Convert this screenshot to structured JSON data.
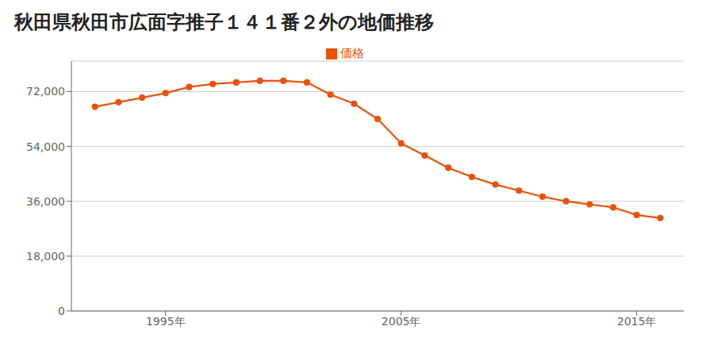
{
  "chart_data": {
    "type": "line",
    "title": "秋田県秋田市広面字推子１４１番２外の地価推移",
    "x": [
      1992,
      1993,
      1994,
      1995,
      1996,
      1997,
      1998,
      1999,
      2000,
      2001,
      2002,
      2003,
      2004,
      2005,
      2006,
      2007,
      2008,
      2009,
      2010,
      2011,
      2012,
      2013,
      2014,
      2015,
      2016
    ],
    "series": [
      {
        "name": "価格",
        "color": "#E8520A",
        "marker": "circle",
        "values": [
          67000,
          68500,
          70000,
          71500,
          73500,
          74500,
          75000,
          75500,
          75500,
          75000,
          71000,
          68000,
          63000,
          55000,
          51000,
          47000,
          44000,
          41500,
          39500,
          37500,
          36000,
          35000,
          34000,
          31500,
          30500
        ]
      }
    ],
    "xlim": [
      1991,
      2017
    ],
    "xticks": [
      {
        "value": 1995,
        "label": "1995年"
      },
      {
        "value": 2005,
        "label": "2005年"
      },
      {
        "value": 2015,
        "label": "2015年"
      }
    ],
    "ylim": [
      0,
      82000
    ],
    "yticks": [
      0,
      {
        "value": 18000,
        "label": "18,000"
      },
      {
        "value": 36000,
        "label": "36,000"
      },
      {
        "value": 54000,
        "label": "54,000"
      },
      {
        "value": 72000,
        "label": "72,000"
      }
    ],
    "grid": true,
    "legend": "top"
  }
}
